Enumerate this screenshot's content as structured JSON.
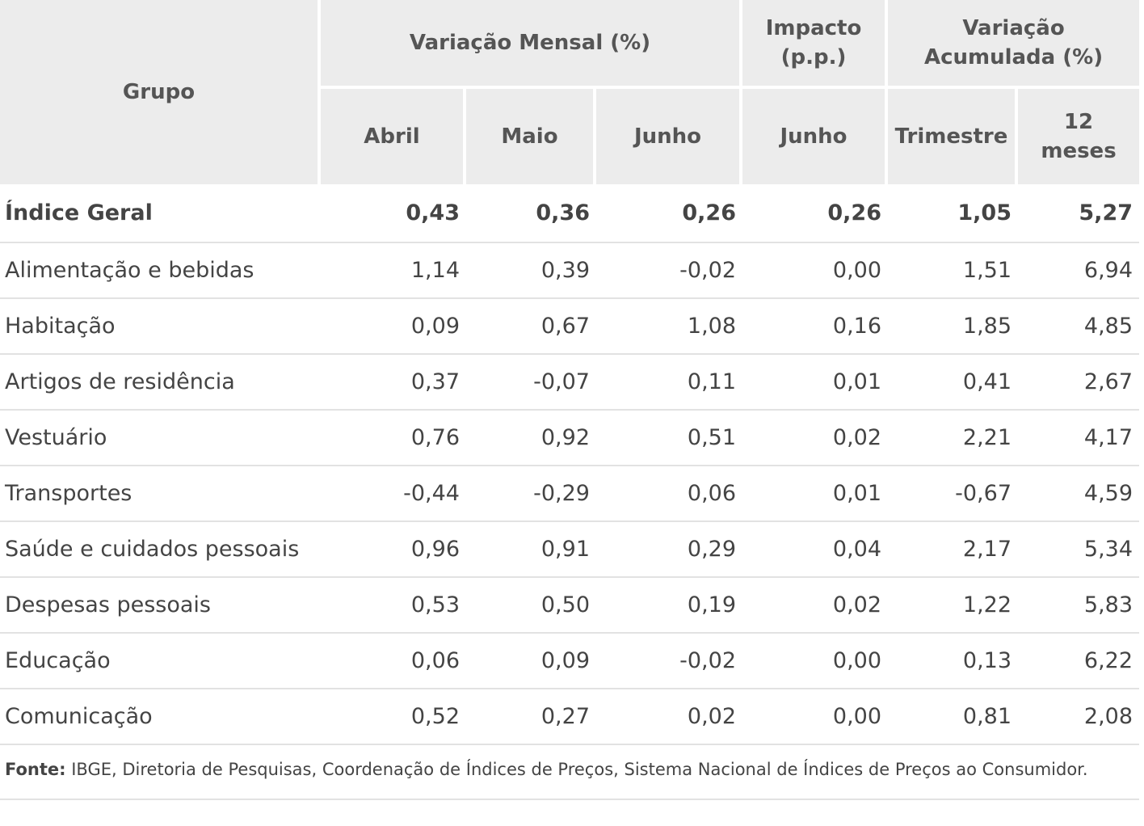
{
  "header": {
    "grupo": "Grupo",
    "variacao_mensal": "Variação Mensal (%)",
    "impacto_line1": "Impacto",
    "impacto_line2": "(p.p.)",
    "variacao_acum_line1": "Variação",
    "variacao_acum_line2": "Acumulada (%)",
    "abril": "Abril",
    "maio": "Maio",
    "junho": "Junho",
    "impacto_junho": "Junho",
    "trimestre": "Trimestre",
    "meses_line1": "12",
    "meses_line2": "meses"
  },
  "rows": [
    {
      "label": "Índice Geral",
      "abril": "0,43",
      "maio": "0,36",
      "junho": "0,26",
      "impacto": "0,26",
      "trimestre": "1,05",
      "meses12": "5,27"
    },
    {
      "label": "Alimentação e bebidas",
      "abril": "1,14",
      "maio": "0,39",
      "junho": "-0,02",
      "impacto": "0,00",
      "trimestre": "1,51",
      "meses12": "6,94"
    },
    {
      "label": "Habitação",
      "abril": "0,09",
      "maio": "0,67",
      "junho": "1,08",
      "impacto": "0,16",
      "trimestre": "1,85",
      "meses12": "4,85"
    },
    {
      "label": "Artigos de residência",
      "abril": "0,37",
      "maio": "-0,07",
      "junho": "0,11",
      "impacto": "0,01",
      "trimestre": "0,41",
      "meses12": "2,67"
    },
    {
      "label": "Vestuário",
      "abril": "0,76",
      "maio": "0,92",
      "junho": "0,51",
      "impacto": "0,02",
      "trimestre": "2,21",
      "meses12": "4,17"
    },
    {
      "label": "Transportes",
      "abril": "-0,44",
      "maio": "-0,29",
      "junho": "0,06",
      "impacto": "0,01",
      "trimestre": "-0,67",
      "meses12": "4,59"
    },
    {
      "label": "Saúde e cuidados pessoais",
      "abril": "0,96",
      "maio": "0,91",
      "junho": "0,29",
      "impacto": "0,04",
      "trimestre": "2,17",
      "meses12": "5,34"
    },
    {
      "label": "Despesas pessoais",
      "abril": "0,53",
      "maio": "0,50",
      "junho": "0,19",
      "impacto": "0,02",
      "trimestre": "1,22",
      "meses12": "5,83"
    },
    {
      "label": "Educação",
      "abril": "0,06",
      "maio": "0,09",
      "junho": "-0,02",
      "impacto": "0,00",
      "trimestre": "0,13",
      "meses12": "6,22"
    },
    {
      "label": "Comunicação",
      "abril": "0,52",
      "maio": "0,27",
      "junho": "0,02",
      "impacto": "0,00",
      "trimestre": "0,81",
      "meses12": "2,08"
    }
  ],
  "source": {
    "label": "Fonte:",
    "text": " IBGE, Diretoria de Pesquisas, Coordenação de Índices de Preços, Sistema  Nacional de Índices de Preços ao Consumidor."
  },
  "colors": {
    "header_bg": "#ececec",
    "header_text": "#555555",
    "body_text": "#444444",
    "row_divider": "#e2e2e2"
  }
}
